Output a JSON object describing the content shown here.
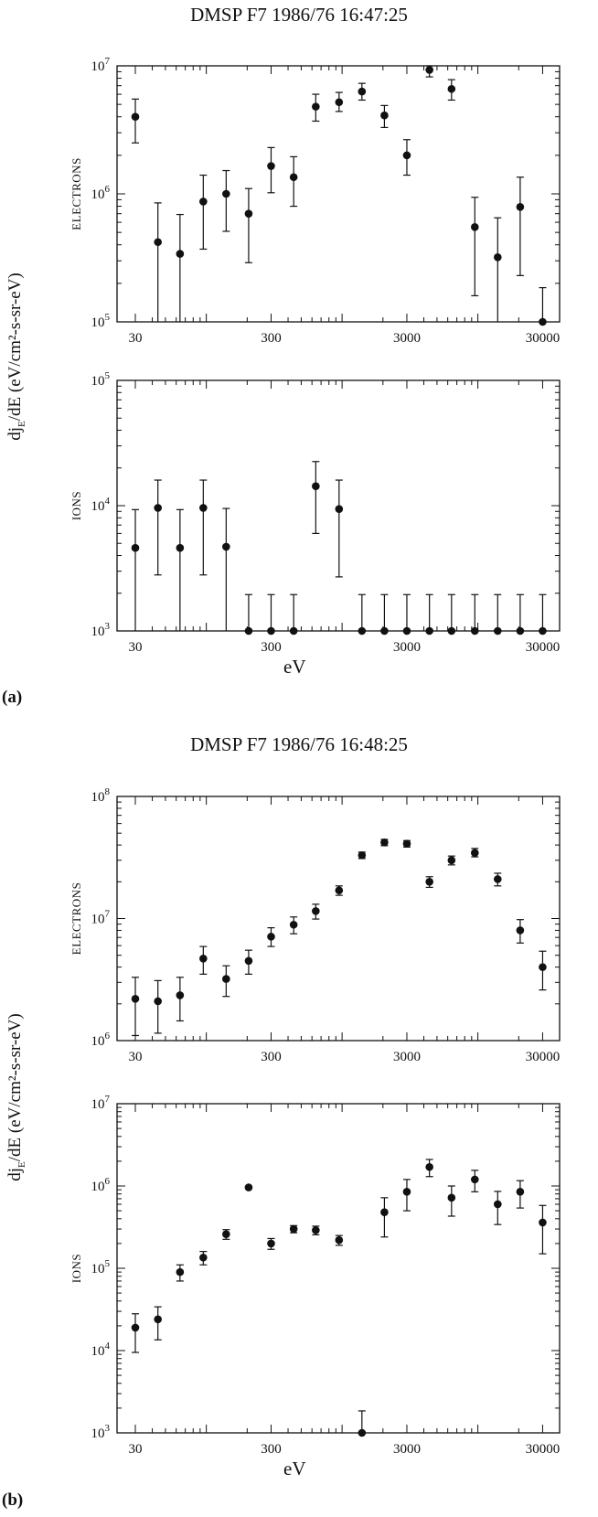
{
  "figure_a": {
    "panel_label": "(a)",
    "title": "DMSP F7 1986/76  16:47:25"
  },
  "figure_b": {
    "panel_label": "(b)",
    "title": "DMSP F7 1986/76  16:48:25"
  },
  "shared_ylabel": {
    "main": "dj",
    "sub": "E",
    "rest": "/dE  (eV/cm²-s-sr-eV)"
  },
  "xlabel": "eV",
  "chart_data": [
    {
      "type": "scatter",
      "scale": "log-log",
      "panel": "a",
      "subplot": "ELECTRONS",
      "ylabel": "ELECTRONS",
      "xlim": [
        22,
        40000
      ],
      "ylim": [
        100000,
        10000000
      ],
      "xticklabels": [
        "30",
        "300",
        "3000",
        "30000"
      ],
      "yticklabels": [
        "10^5",
        "10^6",
        "10^7"
      ],
      "points": [
        {
          "x": 30,
          "y": 4000000,
          "lo": 2500000,
          "hi": 5500000
        },
        {
          "x": 44,
          "y": 420000,
          "lo": 100000,
          "hi": 850000
        },
        {
          "x": 64,
          "y": 340000,
          "lo": 100000,
          "hi": 690000
        },
        {
          "x": 95,
          "y": 870000,
          "lo": 370000,
          "hi": 1400000
        },
        {
          "x": 140,
          "y": 1000000,
          "lo": 510000,
          "hi": 1520000
        },
        {
          "x": 205,
          "y": 700000,
          "lo": 290000,
          "hi": 1100000
        },
        {
          "x": 300,
          "y": 1650000,
          "lo": 1020000,
          "hi": 2300000
        },
        {
          "x": 440,
          "y": 1350000,
          "lo": 800000,
          "hi": 1950000
        },
        {
          "x": 640,
          "y": 4800000,
          "lo": 3700000,
          "hi": 6000000
        },
        {
          "x": 950,
          "y": 5200000,
          "lo": 4400000,
          "hi": 6200000
        },
        {
          "x": 1400,
          "y": 6300000,
          "lo": 5400000,
          "hi": 7300000
        },
        {
          "x": 2050,
          "y": 4100000,
          "lo": 3300000,
          "hi": 4900000
        },
        {
          "x": 3000,
          "y": 2000000,
          "lo": 1400000,
          "hi": 2650000
        },
        {
          "x": 4400,
          "y": 9300000,
          "lo": 8200000,
          "hi": 10000000
        },
        {
          "x": 6400,
          "y": 6600000,
          "lo": 5400000,
          "hi": 7800000
        },
        {
          "x": 9500,
          "y": 550000,
          "lo": 160000,
          "hi": 940000
        },
        {
          "x": 14000,
          "y": 320000,
          "lo": 100000,
          "hi": 650000
        },
        {
          "x": 20500,
          "y": 790000,
          "lo": 230000,
          "hi": 1350000
        },
        {
          "x": 30000,
          "y": 100000,
          "lo": 100000,
          "hi": 185000
        }
      ]
    },
    {
      "type": "scatter",
      "scale": "log-log",
      "panel": "a",
      "subplot": "IONS",
      "ylabel": "IONS",
      "xlim": [
        22,
        40000
      ],
      "ylim": [
        1000,
        100000
      ],
      "xticklabels": [
        "30",
        "300",
        "3000",
        "30000"
      ],
      "yticklabels": [
        "10^3",
        "10^4",
        "10^5"
      ],
      "points": [
        {
          "x": 30,
          "y": 4600,
          "lo": 1000,
          "hi": 9300
        },
        {
          "x": 44,
          "y": 9600,
          "lo": 2800,
          "hi": 16000
        },
        {
          "x": 64,
          "y": 4600,
          "lo": 1000,
          "hi": 9300
        },
        {
          "x": 95,
          "y": 9600,
          "lo": 2800,
          "hi": 16000
        },
        {
          "x": 140,
          "y": 4700,
          "lo": 1000,
          "hi": 9500
        },
        {
          "x": 205,
          "y": 1000,
          "lo": 1000,
          "hi": 1950
        },
        {
          "x": 300,
          "y": 1000,
          "lo": 1000,
          "hi": 1950
        },
        {
          "x": 440,
          "y": 1000,
          "lo": 1000,
          "hi": 1950
        },
        {
          "x": 640,
          "y": 14300,
          "lo": 6000,
          "hi": 22500
        },
        {
          "x": 950,
          "y": 9400,
          "lo": 2700,
          "hi": 16000
        },
        {
          "x": 1400,
          "y": 1000,
          "lo": 1000,
          "hi": 1950
        },
        {
          "x": 2050,
          "y": 1000,
          "lo": 1000,
          "hi": 1950
        },
        {
          "x": 3000,
          "y": 1000,
          "lo": 1000,
          "hi": 1950
        },
        {
          "x": 4400,
          "y": 1000,
          "lo": 1000,
          "hi": 1950
        },
        {
          "x": 6400,
          "y": 1000,
          "lo": 1000,
          "hi": 1950
        },
        {
          "x": 9500,
          "y": 1000,
          "lo": 1000,
          "hi": 1950
        },
        {
          "x": 14000,
          "y": 1000,
          "lo": 1000,
          "hi": 1950
        },
        {
          "x": 20500,
          "y": 1000,
          "lo": 1000,
          "hi": 1950
        },
        {
          "x": 30000,
          "y": 1000,
          "lo": 1000,
          "hi": 1950
        }
      ]
    },
    {
      "type": "scatter",
      "scale": "log-log",
      "panel": "b",
      "subplot": "ELECTRONS",
      "ylabel": "ELECTRONS",
      "xlim": [
        22,
        40000
      ],
      "ylim": [
        1000000,
        100000000
      ],
      "xticklabels": [
        "30",
        "300",
        "3000",
        "30000"
      ],
      "yticklabels": [
        "10^6",
        "10^7",
        "10^8"
      ],
      "points": [
        {
          "x": 30,
          "y": 2200000,
          "lo": 1100000,
          "hi": 3300000
        },
        {
          "x": 44,
          "y": 2100000,
          "lo": 1150000,
          "hi": 3100000
        },
        {
          "x": 64,
          "y": 2350000,
          "lo": 1450000,
          "hi": 3300000
        },
        {
          "x": 95,
          "y": 4700000,
          "lo": 3500000,
          "hi": 5900000
        },
        {
          "x": 140,
          "y": 3200000,
          "lo": 2300000,
          "hi": 4100000
        },
        {
          "x": 205,
          "y": 4500000,
          "lo": 3500000,
          "hi": 5500000
        },
        {
          "x": 300,
          "y": 7100000,
          "lo": 5900000,
          "hi": 8400000
        },
        {
          "x": 440,
          "y": 8900000,
          "lo": 7500000,
          "hi": 10300000
        },
        {
          "x": 640,
          "y": 11500000,
          "lo": 9900000,
          "hi": 13100000
        },
        {
          "x": 950,
          "y": 17000000,
          "lo": 15500000,
          "hi": 18500000
        },
        {
          "x": 1400,
          "y": 33000000,
          "lo": 31000000,
          "hi": 35000000
        },
        {
          "x": 2050,
          "y": 42000000,
          "lo": 39500000,
          "hi": 44500000
        },
        {
          "x": 3000,
          "y": 41000000,
          "lo": 38500000,
          "hi": 43500000
        },
        {
          "x": 4400,
          "y": 20000000,
          "lo": 18000000,
          "hi": 22000000
        },
        {
          "x": 6400,
          "y": 30000000,
          "lo": 27500000,
          "hi": 32500000
        },
        {
          "x": 9500,
          "y": 34500000,
          "lo": 32000000,
          "hi": 37500000
        },
        {
          "x": 14000,
          "y": 21000000,
          "lo": 18500000,
          "hi": 23500000
        },
        {
          "x": 20500,
          "y": 8000000,
          "lo": 6300000,
          "hi": 9800000
        },
        {
          "x": 30000,
          "y": 4000000,
          "lo": 2600000,
          "hi": 5400000
        }
      ]
    },
    {
      "type": "scatter",
      "scale": "log-log",
      "panel": "b",
      "subplot": "IONS",
      "ylabel": "IONS",
      "xlim": [
        22,
        40000
      ],
      "ylim": [
        1000,
        10000000
      ],
      "xticklabels": [
        "30",
        "300",
        "3000",
        "30000"
      ],
      "yticklabels": [
        "10^3",
        "10^4",
        "10^5",
        "10^6",
        "10^7"
      ],
      "points": [
        {
          "x": 30,
          "y": 19000,
          "lo": 9500,
          "hi": 28000
        },
        {
          "x": 44,
          "y": 24000,
          "lo": 13500,
          "hi": 34000
        },
        {
          "x": 64,
          "y": 90000,
          "lo": 70000,
          "hi": 110000
        },
        {
          "x": 95,
          "y": 135000,
          "lo": 110000,
          "hi": 160000
        },
        {
          "x": 140,
          "y": 260000,
          "lo": 225000,
          "hi": 295000
        },
        {
          "x": 205,
          "y": 960000,
          "lo": 960000,
          "hi": 960000
        },
        {
          "x": 300,
          "y": 200000,
          "lo": 170000,
          "hi": 230000
        },
        {
          "x": 440,
          "y": 300000,
          "lo": 270000,
          "hi": 330000
        },
        {
          "x": 640,
          "y": 290000,
          "lo": 255000,
          "hi": 325000
        },
        {
          "x": 950,
          "y": 220000,
          "lo": 190000,
          "hi": 250000
        },
        {
          "x": 1400,
          "y": 1000,
          "lo": 1000,
          "hi": 1850
        },
        {
          "x": 2050,
          "y": 480000,
          "lo": 240000,
          "hi": 720000
        },
        {
          "x": 3000,
          "y": 850000,
          "lo": 500000,
          "hi": 1200000
        },
        {
          "x": 4400,
          "y": 1700000,
          "lo": 1300000,
          "hi": 2100000
        },
        {
          "x": 6400,
          "y": 720000,
          "lo": 430000,
          "hi": 1000000
        },
        {
          "x": 9500,
          "y": 1200000,
          "lo": 850000,
          "hi": 1550000
        },
        {
          "x": 14000,
          "y": 600000,
          "lo": 340000,
          "hi": 860000
        },
        {
          "x": 20500,
          "y": 850000,
          "lo": 540000,
          "hi": 1160000
        },
        {
          "x": 30000,
          "y": 360000,
          "lo": 150000,
          "hi": 580000
        }
      ]
    }
  ]
}
